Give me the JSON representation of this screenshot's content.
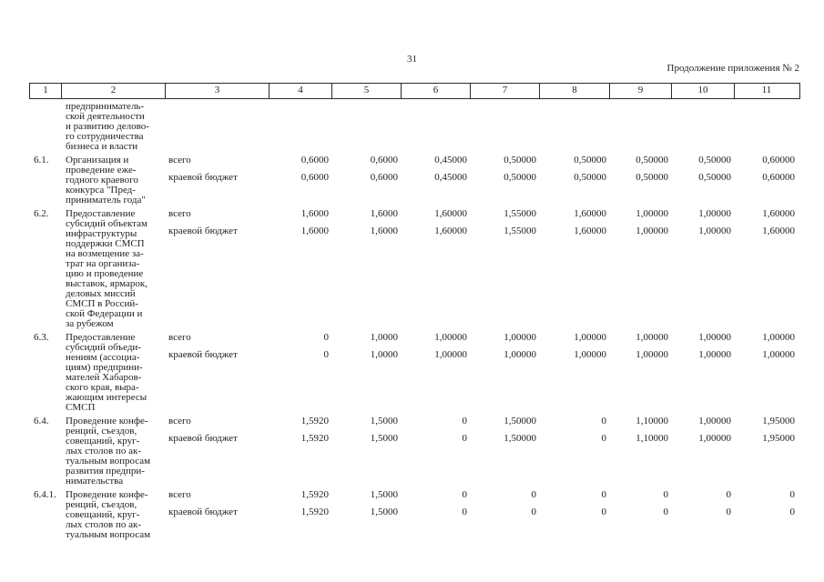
{
  "page": {
    "number": "31",
    "continuation_note": "Продолжение приложения № 2"
  },
  "table": {
    "column_numbers": [
      "1",
      "2",
      "3",
      "4",
      "5",
      "6",
      "7",
      "8",
      "9",
      "10",
      "11"
    ],
    "budget_labels": {
      "total": "всего",
      "regional": "краевой бюджет"
    },
    "carryover_text": "предприниматель-\nской деятельности\nи развитию делово-\nго сотрудничества\nбизнеса и власти",
    "rows": [
      {
        "num": "6.1.",
        "name": "Организация и\nпроведение еже-\nгодного краевого\nконкурса \"Пред-\nприниматель года\"",
        "total": [
          "0,6000",
          "0,6000",
          "0,45000",
          "0,50000",
          "0,50000",
          "0,50000",
          "0,50000",
          "0,60000"
        ],
        "regional": [
          "0,6000",
          "0,6000",
          "0,45000",
          "0,50000",
          "0,50000",
          "0,50000",
          "0,50000",
          "0,60000"
        ]
      },
      {
        "num": "6.2.",
        "name": "Предоставление\nсубсидий объектам\nинфраструктуры\nподдержки СМСП\nна возмещение за-\nтрат на организа-\nцию и проведение\nвыставок, ярмарок,\nделовых миссий\nСМСП в Россий-\nской Федерации и\nза рубежом",
        "total": [
          "1,6000",
          "1,6000",
          "1,60000",
          "1,55000",
          "1,60000",
          "1,00000",
          "1,00000",
          "1,60000"
        ],
        "regional": [
          "1,6000",
          "1,6000",
          "1,60000",
          "1,55000",
          "1,60000",
          "1,00000",
          "1,00000",
          "1,60000"
        ]
      },
      {
        "num": "6.3.",
        "name": "Предоставление\nсубсидий объеди-\nнениям (ассоциа-\nциям) предприни-\nмателей Хабаров-\nского края, выра-\nжающим интересы\nСМСП",
        "total": [
          "0",
          "1,0000",
          "1,00000",
          "1,00000",
          "1,00000",
          "1,00000",
          "1,00000",
          "1,00000"
        ],
        "regional": [
          "0",
          "1,0000",
          "1,00000",
          "1,00000",
          "1,00000",
          "1,00000",
          "1,00000",
          "1,00000"
        ]
      },
      {
        "num": "6.4.",
        "name": "Проведение конфе-\nренций, съездов,\nсовещаний, круг-\nлых столов по ак-\nтуальным вопросам\nразвития предпри-\nнимательства",
        "total": [
          "1,5920",
          "1,5000",
          "0",
          "1,50000",
          "0",
          "1,10000",
          "1,00000",
          "1,95000"
        ],
        "regional": [
          "1,5920",
          "1,5000",
          "0",
          "1,50000",
          "0",
          "1,10000",
          "1,00000",
          "1,95000"
        ]
      },
      {
        "num": "6.4.1.",
        "name": "Проведение конфе-\nренций, съездов,\nсовещаний, круг-\nлых столов по ак-\nтуальным вопросам",
        "total": [
          "1,5920",
          "1,5000",
          "0",
          "0",
          "0",
          "0",
          "0",
          "0"
        ],
        "regional": [
          "1,5920",
          "1,5000",
          "0",
          "0",
          "0",
          "0",
          "0",
          "0"
        ]
      }
    ]
  }
}
